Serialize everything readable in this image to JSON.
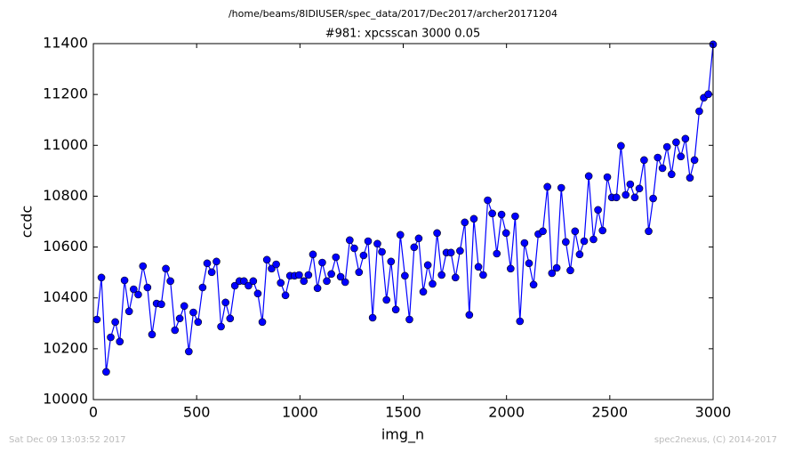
{
  "chart_data": {
    "type": "line",
    "title": "/home/beams/8IDIUSER/spec_data/2017/Dec2017/archer20171204",
    "subtitle": "#981: xpcsscan 3000 0.05",
    "xlabel": "img_n",
    "ylabel": "ccdc",
    "footer_left": "Sat Dec 09 13:03:52 2017",
    "footer_right": "spec2nexus, (C) 2014-2017",
    "color": "#0000ff",
    "x": [
      17,
      39,
      62,
      84,
      106,
      128,
      151,
      173,
      195,
      217,
      240,
      262,
      284,
      306,
      329,
      351,
      373,
      395,
      418,
      440,
      462,
      484,
      507,
      529,
      551,
      573,
      596,
      618,
      640,
      662,
      685,
      707,
      729,
      751,
      774,
      796,
      818,
      840,
      863,
      885,
      907,
      930,
      952,
      974,
      996,
      1019,
      1041,
      1063,
      1085,
      1108,
      1130,
      1152,
      1174,
      1197,
      1219,
      1241,
      1263,
      1286,
      1308,
      1330,
      1352,
      1375,
      1397,
      1419,
      1441,
      1464,
      1486,
      1508,
      1530,
      1553,
      1575,
      1597,
      1619,
      1642,
      1664,
      1686,
      1709,
      1731,
      1753,
      1775,
      1798,
      1820,
      1842,
      1864,
      1887,
      1909,
      1931,
      1953,
      1976,
      1998,
      2020,
      2042,
      2065,
      2087,
      2109,
      2131,
      2154,
      2176,
      2198,
      2220,
      2243,
      2265,
      2287,
      2309,
      2332,
      2354,
      2376,
      2398,
      2421,
      2443,
      2465,
      2488,
      2510,
      2532,
      2554,
      2577,
      2599,
      2621,
      2643,
      2666,
      2688,
      2710,
      2732,
      2755,
      2777,
      2799,
      2821,
      2844,
      2866,
      2888,
      2910,
      2933,
      2955,
      2977,
      3000
    ],
    "values": [
      10315,
      10480,
      10109,
      10245,
      10305,
      10228,
      10469,
      10347,
      10434,
      10413,
      10525,
      10441,
      10256,
      10378,
      10375,
      10515,
      10466,
      10273,
      10319,
      10368,
      10189,
      10343,
      10305,
      10441,
      10536,
      10501,
      10543,
      10287,
      10382,
      10319,
      10448,
      10466,
      10466,
      10448,
      10466,
      10417,
      10305,
      10550,
      10515,
      10532,
      10459,
      10410,
      10487,
      10487,
      10490,
      10466,
      10490,
      10571,
      10438,
      10539,
      10466,
      10494,
      10560,
      10483,
      10462,
      10627,
      10595,
      10501,
      10567,
      10623,
      10322,
      10613,
      10581,
      10392,
      10543,
      10354,
      10648,
      10487,
      10315,
      10599,
      10634,
      10424,
      10529,
      10455,
      10655,
      10490,
      10578,
      10578,
      10480,
      10585,
      10697,
      10333,
      10711,
      10522,
      10490,
      10784,
      10732,
      10574,
      10728,
      10655,
      10515,
      10721,
      10308,
      10616,
      10536,
      10452,
      10651,
      10662,
      10837,
      10497,
      10518,
      10833,
      10620,
      10508,
      10662,
      10571,
      10623,
      10879,
      10630,
      10746,
      10665,
      10875,
      10795,
      10795,
      10998,
      10805,
      10847,
      10795,
      10830,
      10942,
      10662,
      10791,
      10952,
      10910,
      10994,
      10886,
      11012,
      10956,
      11026,
      10872,
      10942,
      11134,
      11187,
      11201,
      11397
    ],
    "xlim": [
      0,
      3000
    ],
    "xticks": [
      0,
      500,
      1000,
      1500,
      2000,
      2500,
      3000
    ],
    "ylim": [
      10000,
      11400
    ],
    "yticks": [
      10000,
      10200,
      10400,
      10600,
      10800,
      11000,
      11200,
      11400
    ]
  }
}
